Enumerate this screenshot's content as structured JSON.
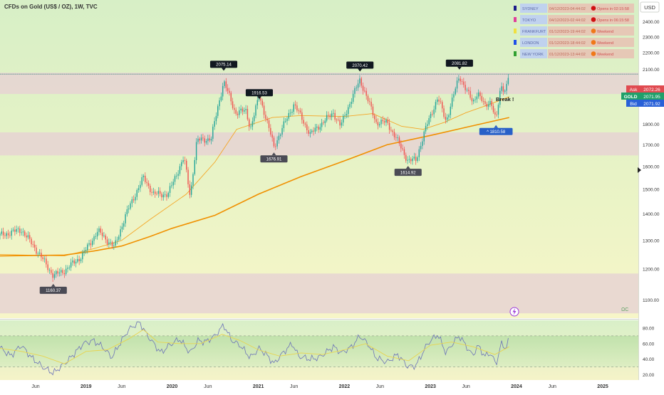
{
  "header": {
    "title": "CFDs on Gold (US$ / OZ), 1W, TVC",
    "currency_button": "USD"
  },
  "sessions": [
    {
      "name": "SYDNEY",
      "color": "#1b1b8a",
      "time": "04/12/2023-04:44:02",
      "status": "Opens in 02:15:58",
      "status_color": "#d01010"
    },
    {
      "name": "TOKYO",
      "color": "#e0409a",
      "time": "04/12/2023-02:44:02",
      "status": "Opens in 06:15:58",
      "status_color": "#d01010"
    },
    {
      "name": "FRANKFURT",
      "color": "#f0e040",
      "time": "01/12/2023-19:44:02",
      "status": "Weekend",
      "status_color": "#f07818"
    },
    {
      "name": "LONDON",
      "color": "#2050e8",
      "time": "01/12/2023-18:44:02",
      "status": "Weekend",
      "status_color": "#f07818"
    },
    {
      "name": "NEW YORK",
      "color": "#30a030",
      "time": "01/12/2023-13:44:02",
      "status": "Weekend",
      "status_color": "#f07818"
    }
  ],
  "price_tags": {
    "ask_label": "Ask",
    "ask_value": "2072.26",
    "symbol_label": "GOLD",
    "last_value": "2071.95",
    "bid_label": "Bid",
    "bid_value": "2071.92"
  },
  "annotations": {
    "break_text": "Break !",
    "bottom_right_mark": "ΩC"
  },
  "colors": {
    "up_candle": "#26a69a",
    "down_candle": "#ef5350",
    "ma_fast": "#f5a524",
    "ma_slow": "#f09000",
    "rsi_line": "#6c73b8",
    "rsi_signal": "#e8d450",
    "ask_tag": "#e04a50",
    "last_tag": "#1fa06a",
    "bid_tag": "#2860d8",
    "support_label": "#2860c8"
  },
  "chart_data": [
    {
      "type": "candlestick",
      "title": "CFDs on Gold (US$ / OZ), 1W, TVC",
      "ylabel": "USD",
      "y_scale": "log",
      "ylim": [
        1050,
        2480
      ],
      "yticks": [
        1000,
        1100,
        1200,
        1300,
        1400,
        1500,
        1600,
        1700,
        1800,
        1900,
        2000,
        2100,
        2200,
        2300,
        2400
      ],
      "xlim": [
        "2018-01-01",
        "2025-06-01"
      ],
      "x_tick_labels": [
        {
          "date": "2018-06-01",
          "label": "Jun"
        },
        {
          "date": "2019-01-01",
          "label": "2019"
        },
        {
          "date": "2019-06-01",
          "label": "Jun"
        },
        {
          "date": "2020-01-01",
          "label": "2020"
        },
        {
          "date": "2020-06-01",
          "label": "Jun"
        },
        {
          "date": "2021-01-01",
          "label": "2021"
        },
        {
          "date": "2021-06-01",
          "label": "Jun"
        },
        {
          "date": "2022-01-01",
          "label": "2022"
        },
        {
          "date": "2022-06-01",
          "label": "Jun"
        },
        {
          "date": "2023-01-01",
          "label": "2023"
        },
        {
          "date": "2023-06-01",
          "label": "Jun"
        },
        {
          "date": "2024-01-01",
          "label": "2024"
        },
        {
          "date": "2024-06-01",
          "label": "Jun"
        },
        {
          "date": "2025-01-01",
          "label": "2025"
        }
      ],
      "price_path": [
        [
          "2018-01-01",
          1318
        ],
        [
          "2018-04-01",
          1340
        ],
        [
          "2018-06-01",
          1270
        ],
        [
          "2018-08-15",
          1178
        ],
        [
          "2018-10-01",
          1195
        ],
        [
          "2018-12-15",
          1245
        ],
        [
          "2019-02-20",
          1335
        ],
        [
          "2019-05-01",
          1275
        ],
        [
          "2019-06-20",
          1400
        ],
        [
          "2019-09-01",
          1550
        ],
        [
          "2019-10-15",
          1480
        ],
        [
          "2019-12-15",
          1480
        ],
        [
          "2020-02-20",
          1640
        ],
        [
          "2020-03-18",
          1470
        ],
        [
          "2020-04-15",
          1720
        ],
        [
          "2020-06-15",
          1730
        ],
        [
          "2020-08-07",
          2030
        ],
        [
          "2020-09-25",
          1860
        ],
        [
          "2020-11-10",
          1870
        ],
        [
          "2020-11-28",
          1776
        ],
        [
          "2021-01-05",
          1950
        ],
        [
          "2021-03-08",
          1690
        ],
        [
          "2021-06-01",
          1905
        ],
        [
          "2021-08-09",
          1750
        ],
        [
          "2021-11-15",
          1860
        ],
        [
          "2021-12-15",
          1790
        ],
        [
          "2022-03-08",
          2040
        ],
        [
          "2022-05-15",
          1810
        ],
        [
          "2022-07-01",
          1810
        ],
        [
          "2022-09-28",
          1625
        ],
        [
          "2022-11-01",
          1630
        ],
        [
          "2022-12-15",
          1790
        ],
        [
          "2023-02-01",
          1940
        ],
        [
          "2023-03-08",
          1815
        ],
        [
          "2023-05-04",
          2060
        ],
        [
          "2023-06-30",
          1910
        ],
        [
          "2023-07-20",
          1975
        ],
        [
          "2023-08-20",
          1890
        ],
        [
          "2023-09-15",
          1925
        ],
        [
          "2023-10-06",
          1815
        ],
        [
          "2023-10-27",
          2000
        ],
        [
          "2023-11-15",
          1985
        ],
        [
          "2023-12-01",
          2072
        ]
      ],
      "moving_average_fast": [
        [
          "2018-01-01",
          1250
        ],
        [
          "2018-10-01",
          1245
        ],
        [
          "2019-02-01",
          1270
        ],
        [
          "2019-06-01",
          1300
        ],
        [
          "2019-10-01",
          1380
        ],
        [
          "2020-03-01",
          1480
        ],
        [
          "2020-07-01",
          1620
        ],
        [
          "2020-10-01",
          1775
        ],
        [
          "2021-03-01",
          1835
        ],
        [
          "2021-07-01",
          1845
        ],
        [
          "2022-01-01",
          1840
        ],
        [
          "2022-05-01",
          1855
        ],
        [
          "2022-09-01",
          1790
        ],
        [
          "2022-12-01",
          1775
        ],
        [
          "2023-03-01",
          1810
        ],
        [
          "2023-06-01",
          1860
        ],
        [
          "2023-09-01",
          1900
        ],
        [
          "2023-12-01",
          1945
        ]
      ],
      "moving_average_slow": [
        [
          "2018-01-01",
          1245
        ],
        [
          "2018-10-01",
          1248
        ],
        [
          "2019-02-01",
          1262
        ],
        [
          "2019-06-01",
          1280
        ],
        [
          "2019-10-01",
          1315
        ],
        [
          "2020-01-01",
          1345
        ],
        [
          "2020-07-01",
          1395
        ],
        [
          "2021-01-01",
          1480
        ],
        [
          "2021-07-01",
          1555
        ],
        [
          "2022-01-01",
          1625
        ],
        [
          "2022-07-01",
          1700
        ],
        [
          "2023-01-01",
          1745
        ],
        [
          "2023-06-01",
          1785
        ],
        [
          "2023-12-01",
          1835
        ]
      ],
      "zones": [
        {
          "from": 1960,
          "to": 2080,
          "color": "#e6d4d2"
        },
        {
          "from": 1650,
          "to": 1760,
          "color": "#e6d4d2"
        },
        {
          "from": 1060,
          "to": 1185,
          "color": "#e6d4d2"
        }
      ],
      "horizontal_line": 2072,
      "peak_labels": [
        {
          "date": "2020-08-07",
          "value": 2075.14,
          "text": "2075.14",
          "position": "above"
        },
        {
          "date": "2021-01-05",
          "value": 1916.53,
          "text": "1916.53",
          "position": "above"
        },
        {
          "date": "2022-03-08",
          "value": 2070.42,
          "text": "2070.42",
          "position": "above"
        },
        {
          "date": "2023-05-04",
          "value": 2081.82,
          "text": "2081.82",
          "position": "above"
        },
        {
          "date": "2018-08-15",
          "value": 1160.37,
          "text": "1160.37",
          "position": "below"
        },
        {
          "date": "2021-03-08",
          "value": 1676.91,
          "text": "1676.91",
          "position": "below"
        },
        {
          "date": "2022-09-28",
          "value": 1614.92,
          "text": "1614.92",
          "position": "below"
        },
        {
          "date": "2023-10-06",
          "value": 1810.58,
          "text": "^ 1810.58",
          "position": "below-blue"
        }
      ]
    },
    {
      "type": "line",
      "title": "",
      "ylim": [
        15,
        90
      ],
      "yticks": [
        20,
        40,
        60,
        80
      ],
      "tick_labels": [
        "20.00",
        "40.00",
        "60.00",
        "80.00"
      ],
      "series": [
        {
          "values": [
            [
              "2018-01-01",
              55
            ],
            [
              "2018-02-15",
              44
            ],
            [
              "2018-04-01",
              58
            ],
            [
              "2018-05-15",
              42
            ],
            [
              "2018-07-01",
              30
            ],
            [
              "2018-08-15",
              22
            ],
            [
              "2018-09-15",
              30
            ],
            [
              "2018-10-15",
              38
            ],
            [
              "2018-11-15",
              48
            ],
            [
              "2018-12-20",
              60
            ],
            [
              "2019-02-01",
              64
            ],
            [
              "2019-03-15",
              55
            ],
            [
              "2019-04-20",
              42
            ],
            [
              "2019-06-01",
              64
            ],
            [
              "2019-07-01",
              78
            ],
            [
              "2019-08-15",
              88
            ],
            [
              "2019-09-15",
              72
            ],
            [
              "2019-10-15",
              60
            ],
            [
              "2019-11-15",
              48
            ],
            [
              "2019-12-20",
              58
            ],
            [
              "2020-02-01",
              66
            ],
            [
              "2020-03-18",
              48
            ],
            [
              "2020-04-20",
              64
            ],
            [
              "2020-05-20",
              62
            ],
            [
              "2020-07-01",
              70
            ],
            [
              "2020-08-07",
              84
            ],
            [
              "2020-09-10",
              64
            ],
            [
              "2020-10-15",
              58
            ],
            [
              "2020-11-28",
              42
            ],
            [
              "2021-01-05",
              54
            ],
            [
              "2021-02-10",
              44
            ],
            [
              "2021-03-08",
              34
            ],
            [
              "2021-04-15",
              48
            ],
            [
              "2021-05-25",
              60
            ],
            [
              "2021-06-20",
              44
            ],
            [
              "2021-08-09",
              40
            ],
            [
              "2021-09-15",
              42
            ],
            [
              "2021-11-15",
              56
            ],
            [
              "2021-12-20",
              48
            ],
            [
              "2022-02-01",
              56
            ],
            [
              "2022-03-08",
              70
            ],
            [
              "2022-04-15",
              58
            ],
            [
              "2022-05-15",
              42
            ],
            [
              "2022-07-01",
              36
            ],
            [
              "2022-08-15",
              46
            ],
            [
              "2022-09-28",
              30
            ],
            [
              "2022-11-01",
              32
            ],
            [
              "2022-12-20",
              60
            ],
            [
              "2023-02-01",
              72
            ],
            [
              "2023-03-08",
              48
            ],
            [
              "2023-04-15",
              64
            ],
            [
              "2023-05-04",
              70
            ],
            [
              "2023-06-30",
              44
            ],
            [
              "2023-07-20",
              58
            ],
            [
              "2023-08-20",
              44
            ],
            [
              "2023-09-15",
              48
            ],
            [
              "2023-10-06",
              32
            ],
            [
              "2023-10-27",
              60
            ],
            [
              "2023-11-15",
              54
            ],
            [
              "2023-12-01",
              66
            ]
          ]
        },
        {
          "values": [
            [
              "2018-01-01",
              54
            ],
            [
              "2018-04-01",
              50
            ],
            [
              "2018-07-01",
              44
            ],
            [
              "2018-10-01",
              34
            ],
            [
              "2019-01-01",
              50
            ],
            [
              "2019-04-01",
              52
            ],
            [
              "2019-07-01",
              66
            ],
            [
              "2019-09-01",
              78
            ],
            [
              "2019-11-01",
              62
            ],
            [
              "2020-02-01",
              60
            ],
            [
              "2020-05-01",
              60
            ],
            [
              "2020-08-01",
              72
            ],
            [
              "2020-10-15",
              64
            ],
            [
              "2021-01-01",
              52
            ],
            [
              "2021-04-01",
              44
            ],
            [
              "2021-07-01",
              48
            ],
            [
              "2021-10-01",
              46
            ],
            [
              "2022-01-01",
              52
            ],
            [
              "2022-04-01",
              60
            ],
            [
              "2022-07-01",
              44
            ],
            [
              "2022-10-01",
              38
            ],
            [
              "2023-01-01",
              58
            ],
            [
              "2023-04-01",
              62
            ],
            [
              "2023-07-01",
              56
            ],
            [
              "2023-10-01",
              46
            ],
            [
              "2023-12-01",
              56
            ]
          ]
        }
      ]
    }
  ]
}
